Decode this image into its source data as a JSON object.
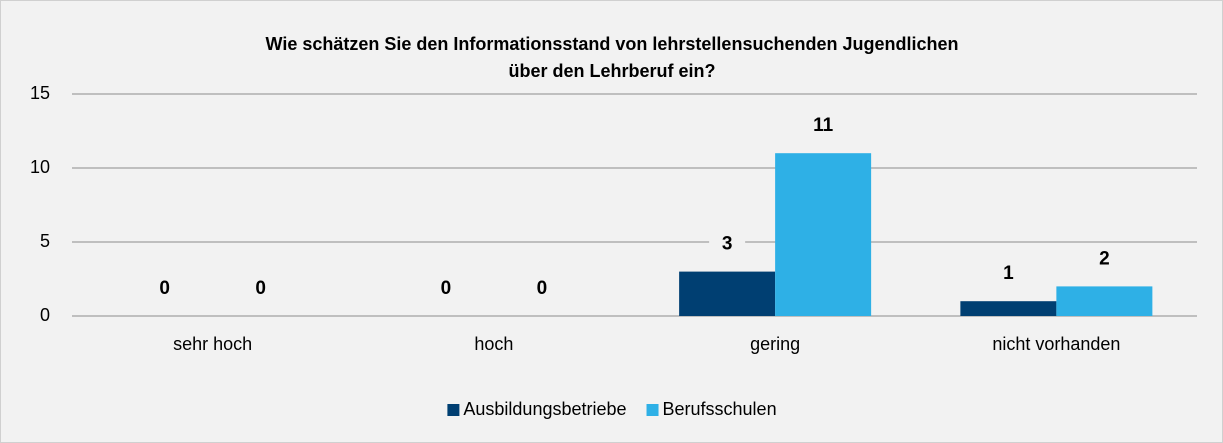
{
  "chart_data": {
    "type": "bar",
    "title": [
      "Wie schätzen Sie den Informationsstand von lehrstellensuchenden Jugendlichen",
      "über den Lehrberuf ein?"
    ],
    "categories": [
      "sehr hoch",
      "hoch",
      "gering",
      "nicht vorhanden"
    ],
    "series": [
      {
        "name": "Ausbildungsbetriebe",
        "color": "#003f72",
        "values": [
          0,
          0,
          3,
          1
        ]
      },
      {
        "name": "Berufsschulen",
        "color": "#2eb0e6",
        "values": [
          0,
          0,
          11,
          2
        ]
      }
    ],
    "ylim": [
      0,
      15
    ],
    "yticks": [
      0,
      5,
      10,
      15
    ],
    "grid": true,
    "legend": "bottom"
  }
}
